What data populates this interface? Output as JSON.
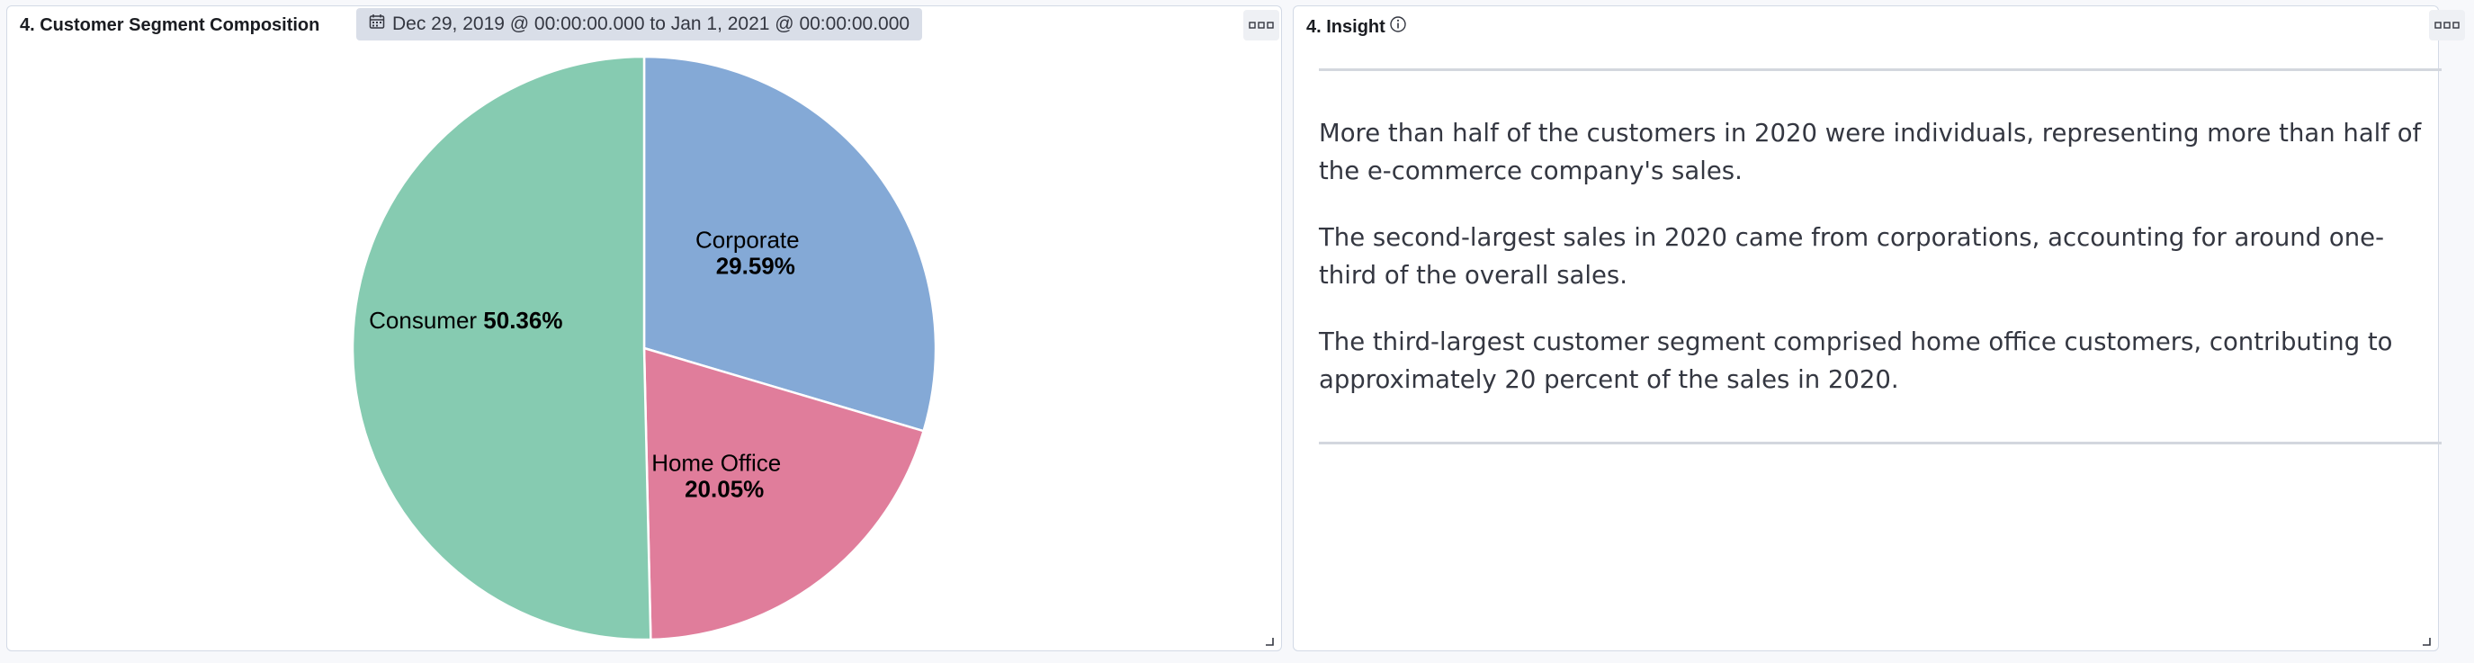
{
  "left_panel": {
    "title": "4. Customer Segment Composition",
    "time_range": "Dec 29, 2019 @ 00:00:00.000 to Jan 1, 2021 @ 00:00:00.000",
    "icons": {
      "calendar": "calendar-icon",
      "menu": "options-menu-icon",
      "resize": "resize-handle-icon"
    }
  },
  "chart_data": {
    "type": "pie",
    "slices": [
      {
        "label": "Corporate",
        "value": 29.59,
        "display": "29.59%",
        "color": "#84a9d6"
      },
      {
        "label": "Home Office",
        "value": 20.05,
        "display": "20.05%",
        "color": "#e07d9b"
      },
      {
        "label": "Consumer",
        "value": 50.36,
        "display": "50.36%",
        "color": "#86cbb1"
      }
    ],
    "start_angle": "12 o'clock",
    "direction": "clockwise",
    "legend": "none"
  },
  "right_panel": {
    "title": "4. Insight",
    "icons": {
      "info": "info-icon",
      "menu": "options-menu-icon",
      "resize": "resize-handle-icon"
    },
    "paragraphs": [
      "More than half of the customers in 2020 were individuals, representing more than half of the e-commerce company's sales.",
      "The second-largest sales in 2020 came from corporations, accounting for around one-third of the overall sales.",
      "The third-largest customer segment comprised home office customers, contributing to approximately 20 percent of the sales in 2020."
    ]
  }
}
